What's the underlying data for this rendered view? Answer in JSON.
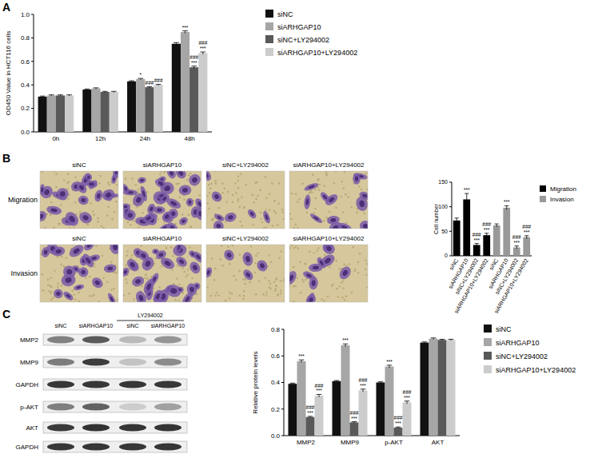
{
  "chart_data": [
    {
      "type": "bar",
      "y_label": "OD450 Value in HCT116 cells",
      "categories": [
        "0h",
        "12h",
        "24h",
        "48h"
      ],
      "ylim": [
        0,
        1.0
      ],
      "yticks": [
        {
          "value": 0,
          "label": "0.0"
        },
        0.2,
        0.4,
        0.6,
        0.8,
        {
          "value": 1.0,
          "label": "1.0"
        }
      ],
      "grid": false,
      "legend": "right",
      "series": [
        {
          "name": "siNC",
          "color": "#111111",
          "values": [
            0.3,
            0.36,
            0.43,
            0.75
          ],
          "errors": [
            0.005,
            0.005,
            0.005,
            0.01
          ],
          "annotations": [
            null,
            null,
            null,
            null
          ]
        },
        {
          "name": "siARHGAP10",
          "color": "#a6a6a6",
          "values": [
            0.31,
            0.37,
            0.45,
            0.85
          ],
          "errors": [
            0.005,
            0.005,
            0.005,
            0.01
          ],
          "annotations": [
            null,
            null,
            [
              "*"
            ],
            [
              "***"
            ]
          ]
        },
        {
          "name": "siNC+LY294002",
          "color": "#595959",
          "values": [
            0.31,
            0.34,
            0.38,
            0.55
          ],
          "errors": [
            0.005,
            0.005,
            0.005,
            0.01
          ],
          "annotations": [
            null,
            null,
            [
              "###"
            ],
            [
              "###",
              "***"
            ]
          ]
        },
        {
          "name": "siARHGAP10+LY294002",
          "color": "#cccccc",
          "values": [
            0.31,
            0.34,
            0.4,
            0.67
          ],
          "errors": [
            0.005,
            0.005,
            0.005,
            0.01
          ],
          "annotations": [
            null,
            null,
            [
              "###"
            ],
            [
              "###",
              "***"
            ]
          ]
        }
      ]
    },
    {
      "type": "bar",
      "y_label": "Cell number",
      "categories": [
        "siNC",
        "siARHGAP10",
        "siNC+LY294002",
        "siARHGAP10+LY294002",
        "siNC",
        "siARHGAP10",
        "siNC+LY294002",
        "siARHGAP10+LY294002"
      ],
      "ylim": [
        0,
        150
      ],
      "yticks": [
        0,
        50,
        100,
        150
      ],
      "grid": false,
      "legend": "top-right",
      "series": [
        {
          "name": "Migration",
          "color": "#000000",
          "values": [
            72,
            115,
            22,
            42,
            null,
            null,
            null,
            null
          ],
          "errors": [
            5,
            12,
            3,
            4,
            null,
            null,
            null,
            null
          ],
          "annotations": [
            null,
            [
              "***"
            ],
            [
              "###",
              "***"
            ],
            [
              "###",
              "***"
            ],
            null,
            null,
            null,
            null
          ]
        },
        {
          "name": "Invasion",
          "color": "#999999",
          "values": [
            null,
            null,
            null,
            null,
            62,
            98,
            17,
            38
          ],
          "errors": [
            null,
            null,
            null,
            null,
            3,
            4,
            3,
            3
          ],
          "annotations": [
            null,
            null,
            null,
            null,
            null,
            [
              "***"
            ],
            [
              "###",
              "***"
            ],
            [
              "###",
              "***"
            ]
          ]
        }
      ]
    },
    {
      "type": "bar",
      "y_label": "Relative protein levels",
      "categories": [
        "MMP2",
        "MMP9",
        "p-AKT",
        "AKT"
      ],
      "ylim": [
        0,
        0.8
      ],
      "yticks": [
        {
          "value": 0,
          "label": "0.0"
        },
        0.2,
        0.4,
        0.6,
        0.8
      ],
      "grid": false,
      "legend": "right",
      "series": [
        {
          "name": "siNC",
          "color": "#111111",
          "values": [
            0.39,
            0.41,
            0.4,
            0.7
          ],
          "errors": [
            0.005,
            0.005,
            0.005,
            0.005
          ],
          "annotations": [
            null,
            null,
            null,
            null
          ]
        },
        {
          "name": "siARHGAP10",
          "color": "#a6a6a6",
          "values": [
            0.56,
            0.68,
            0.52,
            0.73
          ],
          "errors": [
            0.01,
            0.01,
            0.01,
            0.005
          ],
          "annotations": [
            [
              "***"
            ],
            [
              "***"
            ],
            [
              "***"
            ],
            null
          ]
        },
        {
          "name": "siNC+LY294002",
          "color": "#595959",
          "values": [
            0.14,
            0.1,
            0.06,
            0.72
          ],
          "errors": [
            0.005,
            0.005,
            0.005,
            0.005
          ],
          "annotations": [
            [
              "###",
              "***"
            ],
            [
              "###",
              "***"
            ],
            [
              "###",
              "***"
            ],
            null
          ]
        },
        {
          "name": "siARHGAP10+LY294002",
          "color": "#cccccc",
          "values": [
            0.3,
            0.34,
            0.25,
            0.72
          ],
          "errors": [
            0.01,
            0.01,
            0.01,
            0.005
          ],
          "annotations": [
            [
              "###",
              "***"
            ],
            [
              "###",
              "***"
            ],
            [
              "###",
              "***"
            ],
            null
          ]
        }
      ]
    }
  ],
  "panel_labels": [
    "A",
    "B",
    "C"
  ],
  "panel_b_images": {
    "columns": [
      "siNC",
      "siARHGAP10",
      "siNC+LY294002",
      "siARHGAP10+LY294002"
    ],
    "rows": [
      "Migration",
      "Invasion"
    ]
  },
  "panel_c_blot": {
    "group": "LY294002",
    "lanes": [
      "siNC",
      "siARHGAP10",
      "siNC",
      "siARHGAP10"
    ],
    "rows": [
      "MMP2",
      "MMP9",
      "GAPDH",
      "p-AKT",
      "AKT",
      "GAPDH"
    ]
  }
}
